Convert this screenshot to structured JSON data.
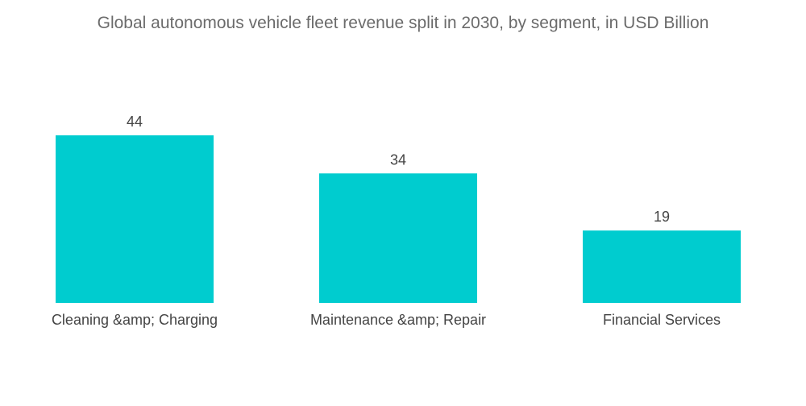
{
  "chart_data": {
    "type": "bar",
    "title": "Global autonomous vehicle fleet revenue split in 2030, by segment, in USD Billion",
    "categories": [
      "Cleaning &amp; Charging",
      "Maintenance &amp; Repair",
      "Financial Services"
    ],
    "values": [
      44,
      34,
      19
    ],
    "data_labels": [
      "44",
      "34",
      "19"
    ],
    "xlabel": "",
    "ylabel": "",
    "ylim": [
      0,
      44
    ],
    "grid": false,
    "legend": "none",
    "colors": {
      "bar": "#00CCCF",
      "text": "#444444",
      "title": "#6b6b6b"
    }
  }
}
